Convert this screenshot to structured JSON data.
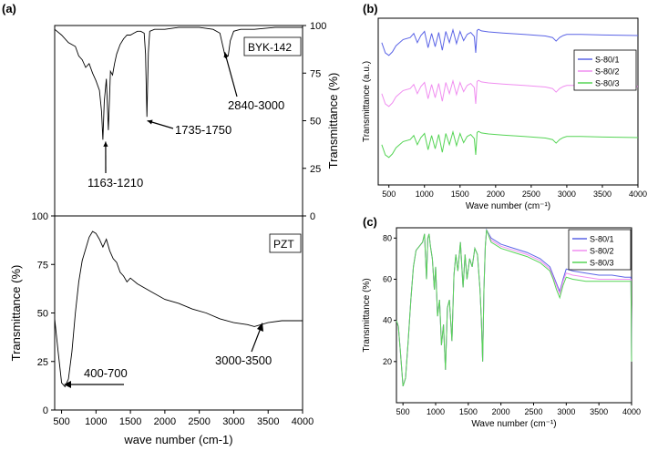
{
  "panels": {
    "a_label": "(a)",
    "b_label": "(b)",
    "c_label": "(c)"
  },
  "chart_data": [
    {
      "id": "a-top",
      "type": "line",
      "legend": "BYK-142",
      "ylabel_right": "Transmittance (%)",
      "xlim": [
        400,
        4000
      ],
      "ylim": [
        0,
        100
      ],
      "yticks": [
        "0",
        "25",
        "50",
        "75",
        "100"
      ],
      "annotations": [
        "2840-3000",
        "1735-1750",
        "1163-1210"
      ],
      "x": [
        400,
        500,
        600,
        700,
        750,
        800,
        850,
        900,
        950,
        1000,
        1050,
        1080,
        1100,
        1120,
        1150,
        1180,
        1210,
        1240,
        1270,
        1300,
        1350,
        1400,
        1450,
        1500,
        1550,
        1600,
        1650,
        1700,
        1720,
        1740,
        1760,
        1780,
        1850,
        2000,
        2200,
        2500,
        2700,
        2800,
        2850,
        2880,
        2920,
        2950,
        3000,
        3100,
        3300,
        3600,
        4000
      ],
      "y": [
        98,
        95,
        91,
        89,
        84,
        82,
        78,
        80,
        75,
        71,
        66,
        55,
        40,
        60,
        72,
        45,
        76,
        74,
        80,
        85,
        90,
        93,
        95,
        95,
        96,
        97,
        97,
        96,
        85,
        52,
        86,
        97,
        98,
        98,
        99,
        99,
        98,
        96,
        88,
        83,
        84,
        92,
        97,
        98,
        98,
        99,
        99
      ]
    },
    {
      "id": "a-bottom",
      "type": "line",
      "legend": "PZT",
      "ylabel": "Transmittance (%)",
      "xlabel": "wave number (cm-1)",
      "xlim": [
        400,
        4000
      ],
      "ylim": [
        0,
        100
      ],
      "xticks": [
        "500",
        "1000",
        "1500",
        "2000",
        "2500",
        "3000",
        "3500",
        "4000"
      ],
      "yticks": [
        "0",
        "25",
        "50",
        "75",
        "100"
      ],
      "annotations": [
        "400-700",
        "3000-3500"
      ],
      "x": [
        400,
        450,
        500,
        550,
        600,
        650,
        700,
        750,
        800,
        850,
        900,
        950,
        1000,
        1050,
        1100,
        1150,
        1200,
        1250,
        1300,
        1350,
        1400,
        1450,
        1500,
        1600,
        1800,
        2000,
        2200,
        2400,
        2600,
        2800,
        3000,
        3200,
        3300,
        3500,
        3700,
        4000
      ],
      "y": [
        47,
        30,
        14,
        12,
        16,
        30,
        50,
        66,
        77,
        83,
        89,
        92,
        91,
        88,
        84,
        88,
        82,
        78,
        76,
        71,
        69,
        66,
        68,
        65,
        61,
        57,
        55,
        52,
        50,
        47,
        45,
        44,
        43,
        45,
        46,
        46
      ]
    },
    {
      "id": "b",
      "type": "line",
      "xlabel": "Wave number (cm⁻¹)",
      "ylabel": "Transmittance (a.u.)",
      "xlim": [
        350,
        4000
      ],
      "xticks": [
        "500",
        "1000",
        "1500",
        "2000",
        "2500",
        "3000",
        "3500",
        "4000"
      ],
      "x": [
        400,
        450,
        500,
        550,
        600,
        700,
        800,
        850,
        900,
        950,
        1000,
        1050,
        1100,
        1150,
        1200,
        1250,
        1300,
        1350,
        1400,
        1450,
        1500,
        1550,
        1600,
        1650,
        1700,
        1720,
        1740,
        1760,
        1800,
        1900,
        2100,
        2400,
        2700,
        2800,
        2850,
        2900,
        2950,
        3000,
        3200,
        3500,
        4000
      ],
      "series": [
        {
          "name": "S-80/1",
          "color": "#5b64e6",
          "offset": 2,
          "y": [
            0.7,
            0.5,
            0.45,
            0.52,
            0.64,
            0.76,
            0.8,
            0.88,
            0.7,
            0.84,
            0.92,
            0.6,
            0.88,
            0.62,
            0.9,
            0.55,
            0.92,
            0.7,
            0.95,
            0.68,
            0.92,
            0.74,
            0.86,
            0.9,
            0.82,
            0.5,
            0.94,
            0.96,
            0.93,
            0.91,
            0.89,
            0.86,
            0.83,
            0.8,
            0.73,
            0.8,
            0.84,
            0.86,
            0.86,
            0.85,
            0.84
          ]
        },
        {
          "name": "S-80/2",
          "color": "#f08ef0",
          "offset": 1,
          "y": [
            0.7,
            0.5,
            0.45,
            0.52,
            0.64,
            0.76,
            0.8,
            0.88,
            0.7,
            0.84,
            0.92,
            0.6,
            0.88,
            0.62,
            0.9,
            0.55,
            0.92,
            0.7,
            0.95,
            0.68,
            0.92,
            0.74,
            0.86,
            0.9,
            0.82,
            0.5,
            0.94,
            0.96,
            0.93,
            0.91,
            0.89,
            0.86,
            0.83,
            0.8,
            0.73,
            0.8,
            0.84,
            0.86,
            0.86,
            0.85,
            0.84
          ]
        },
        {
          "name": "S-80/3",
          "color": "#55d455",
          "offset": 0,
          "y": [
            0.7,
            0.5,
            0.45,
            0.52,
            0.64,
            0.76,
            0.8,
            0.88,
            0.7,
            0.84,
            0.92,
            0.6,
            0.88,
            0.62,
            0.9,
            0.55,
            0.92,
            0.7,
            0.95,
            0.68,
            0.92,
            0.74,
            0.86,
            0.9,
            0.82,
            0.5,
            0.94,
            0.96,
            0.93,
            0.91,
            0.89,
            0.86,
            0.83,
            0.8,
            0.73,
            0.8,
            0.84,
            0.86,
            0.86,
            0.85,
            0.84
          ]
        }
      ]
    },
    {
      "id": "c",
      "type": "line",
      "xlabel": "Wave number (cm⁻¹)",
      "ylabel": "Transmittance (%)",
      "xlim": [
        400,
        4000
      ],
      "ylim": [
        0,
        85
      ],
      "xticks": [
        "500",
        "1000",
        "1500",
        "2000",
        "2500",
        "3000",
        "3500",
        "4000"
      ],
      "yticks": [
        "20",
        "40",
        "60",
        "80"
      ],
      "x": [
        400,
        430,
        460,
        500,
        540,
        580,
        620,
        660,
        700,
        750,
        800,
        830,
        860,
        880,
        900,
        920,
        950,
        980,
        1000,
        1030,
        1060,
        1090,
        1120,
        1150,
        1180,
        1210,
        1250,
        1280,
        1310,
        1340,
        1380,
        1420,
        1450,
        1480,
        1520,
        1560,
        1600,
        1640,
        1680,
        1700,
        1720,
        1740,
        1760,
        1780,
        1850,
        2000,
        2200,
        2400,
        2600,
        2750,
        2800,
        2850,
        2900,
        2950,
        3000,
        3100,
        3300,
        3500,
        3700,
        3900,
        3990,
        4000
      ],
      "series": [
        {
          "name": "S-80/1",
          "color": "#5b64e6",
          "y": [
            40,
            37,
            25,
            8,
            12,
            30,
            50,
            66,
            74,
            76,
            78,
            82,
            60,
            80,
            82,
            76,
            70,
            55,
            66,
            42,
            50,
            28,
            38,
            16,
            46,
            50,
            30,
            62,
            72,
            64,
            78,
            56,
            72,
            60,
            70,
            66,
            75,
            72,
            55,
            40,
            20,
            55,
            76,
            84,
            80,
            77,
            75,
            73,
            70,
            66,
            62,
            58,
            54,
            60,
            65,
            64,
            63,
            62,
            62,
            61,
            61,
            20
          ]
        },
        {
          "name": "S-80/2",
          "color": "#f08ef0",
          "y": [
            40,
            37,
            25,
            8,
            12,
            30,
            50,
            66,
            74,
            76,
            78,
            82,
            60,
            80,
            82,
            76,
            70,
            55,
            66,
            42,
            50,
            28,
            38,
            16,
            46,
            50,
            30,
            62,
            72,
            64,
            78,
            56,
            72,
            60,
            70,
            66,
            75,
            72,
            55,
            40,
            20,
            55,
            76,
            84,
            79,
            76,
            74,
            72,
            69,
            65,
            61,
            57,
            53,
            59,
            63,
            62,
            61,
            60,
            60,
            60,
            60,
            20
          ]
        },
        {
          "name": "S-80/3",
          "color": "#55d455",
          "y": [
            40,
            37,
            25,
            8,
            12,
            30,
            50,
            66,
            74,
            76,
            78,
            82,
            60,
            80,
            82,
            76,
            70,
            55,
            66,
            42,
            50,
            28,
            38,
            16,
            46,
            50,
            30,
            62,
            72,
            64,
            78,
            56,
            72,
            60,
            70,
            66,
            75,
            72,
            55,
            40,
            20,
            55,
            76,
            84,
            78,
            75,
            73,
            71,
            68,
            64,
            60,
            55,
            51,
            57,
            61,
            60,
            59,
            59,
            59,
            59,
            59,
            20
          ]
        }
      ]
    }
  ]
}
